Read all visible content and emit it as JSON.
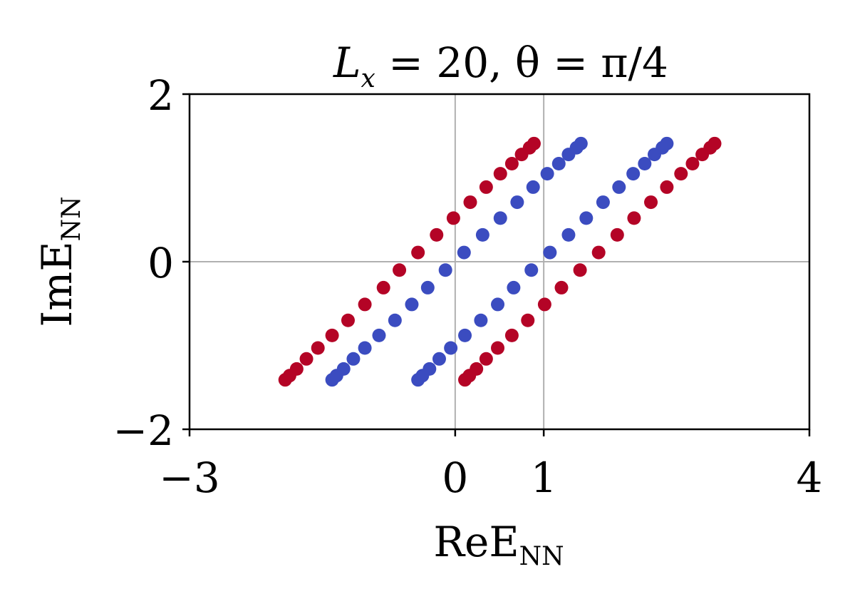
{
  "chart_data": {
    "type": "scatter",
    "title": {
      "main": "L",
      "sub": "x",
      "rest": " = 20, θ = π/4"
    },
    "xlabel": {
      "main": "ReE",
      "sub": "NN"
    },
    "ylabel": {
      "main": "ImE",
      "sub": "NN"
    },
    "xlim": [
      -3,
      4
    ],
    "ylim": [
      -2,
      2
    ],
    "xticks": [
      -3,
      0,
      1,
      4
    ],
    "xtick_labels": [
      "−3",
      "0",
      "1",
      "4"
    ],
    "yticks": [
      -2,
      0,
      2
    ],
    "ytick_labels": [
      "−2",
      "0",
      "2"
    ],
    "grid": {
      "x": [
        0,
        1
      ],
      "y": [
        0
      ]
    },
    "series": [
      {
        "color": "#b40426",
        "points": [
          [
            -1.92,
            -1.41
          ],
          [
            -1.87,
            -1.36
          ],
          [
            -1.79,
            -1.28
          ],
          [
            -1.68,
            -1.16
          ],
          [
            -1.55,
            -1.03
          ],
          [
            -1.39,
            -0.88
          ],
          [
            -1.21,
            -0.7
          ],
          [
            -1.02,
            -0.51
          ],
          [
            -0.81,
            -0.31
          ],
          [
            -0.63,
            -0.1
          ],
          [
            -0.42,
            0.11
          ],
          [
            -0.21,
            0.32
          ],
          [
            -0.02,
            0.52
          ],
          [
            0.17,
            0.71
          ],
          [
            0.35,
            0.89
          ],
          [
            0.51,
            1.05
          ],
          [
            0.64,
            1.17
          ],
          [
            0.75,
            1.28
          ],
          [
            0.84,
            1.36
          ],
          [
            0.89,
            1.41
          ],
          [
            0.11,
            -1.41
          ],
          [
            0.16,
            -1.36
          ],
          [
            0.24,
            -1.28
          ],
          [
            0.35,
            -1.16
          ],
          [
            0.48,
            -1.03
          ],
          [
            0.64,
            -0.88
          ],
          [
            0.82,
            -0.7
          ],
          [
            1.01,
            -0.51
          ],
          [
            1.2,
            -0.31
          ],
          [
            1.41,
            -0.1
          ],
          [
            1.62,
            0.11
          ],
          [
            1.83,
            0.32
          ],
          [
            2.02,
            0.52
          ],
          [
            2.21,
            0.71
          ],
          [
            2.39,
            0.89
          ],
          [
            2.55,
            1.05
          ],
          [
            2.68,
            1.17
          ],
          [
            2.79,
            1.28
          ],
          [
            2.88,
            1.36
          ],
          [
            2.93,
            1.41
          ]
        ]
      },
      {
        "color": "#3b4cc0",
        "points": [
          [
            -1.39,
            -1.41
          ],
          [
            -1.34,
            -1.36
          ],
          [
            -1.26,
            -1.28
          ],
          [
            -1.15,
            -1.16
          ],
          [
            -1.02,
            -1.03
          ],
          [
            -0.86,
            -0.88
          ],
          [
            -0.68,
            -0.7
          ],
          [
            -0.49,
            -0.51
          ],
          [
            -0.31,
            -0.31
          ],
          [
            -0.11,
            -0.1
          ],
          [
            0.1,
            0.11
          ],
          [
            0.31,
            0.32
          ],
          [
            0.51,
            0.52
          ],
          [
            0.7,
            0.71
          ],
          [
            0.88,
            0.89
          ],
          [
            1.04,
            1.05
          ],
          [
            1.17,
            1.17
          ],
          [
            1.28,
            1.28
          ],
          [
            1.37,
            1.36
          ],
          [
            1.42,
            1.41
          ],
          [
            -0.42,
            -1.41
          ],
          [
            -0.37,
            -1.36
          ],
          [
            -0.29,
            -1.28
          ],
          [
            -0.18,
            -1.16
          ],
          [
            -0.05,
            -1.03
          ],
          [
            0.11,
            -0.88
          ],
          [
            0.29,
            -0.7
          ],
          [
            0.48,
            -0.51
          ],
          [
            0.66,
            -0.31
          ],
          [
            0.86,
            -0.1
          ],
          [
            1.07,
            0.11
          ],
          [
            1.28,
            0.32
          ],
          [
            1.48,
            0.52
          ],
          [
            1.67,
            0.71
          ],
          [
            1.85,
            0.89
          ],
          [
            2.01,
            1.05
          ],
          [
            2.14,
            1.17
          ],
          [
            2.25,
            1.28
          ],
          [
            2.34,
            1.36
          ],
          [
            2.39,
            1.41
          ]
        ]
      }
    ]
  }
}
